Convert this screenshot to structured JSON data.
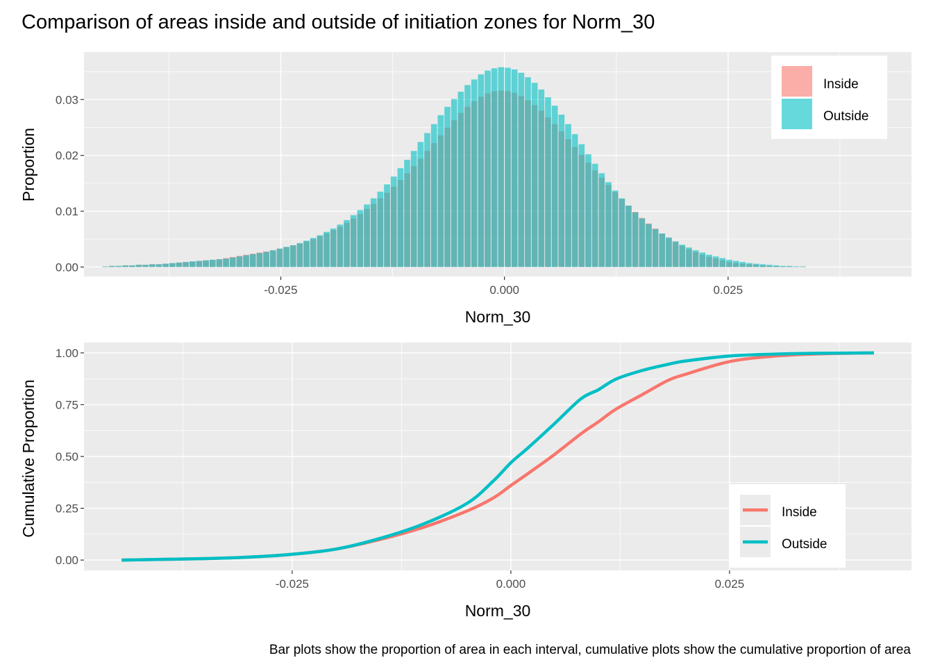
{
  "title": "Comparison of areas inside and outside of initiation zones for Norm_30",
  "caption": "Bar plots show the proportion of area in each interval, cumulative plots show the cumulative proportion of area",
  "colors": {
    "inside": "#F8766D",
    "outside": "#00BFC4",
    "panel": "#EBEBEB",
    "grid": "#FFFFFF"
  },
  "chart_data": [
    {
      "type": "bar",
      "xlabel": "Norm_30",
      "ylabel": "Proportion",
      "xlim": [
        -0.047,
        0.0455
      ],
      "ylim": [
        -0.0017,
        0.0385
      ],
      "xticks": [
        -0.025,
        0.0,
        0.025
      ],
      "xtick_labels": [
        "-0.025",
        "0.000",
        "0.025"
      ],
      "yticks": [
        0.0,
        0.01,
        0.02,
        0.03
      ],
      "ytick_labels": [
        "0.00",
        "0.01",
        "0.02",
        "0.03"
      ],
      "grid": true,
      "legend": {
        "position": "top-right",
        "entries": [
          "Inside",
          "Outside"
        ]
      },
      "bin_width": 0.00075,
      "x_start": -0.045,
      "series": [
        {
          "name": "Inside",
          "color": "#F8766D",
          "opacity": 0.6,
          "values": [
            0.0001,
            0.0002,
            0.0002,
            0.0003,
            0.0003,
            0.0004,
            0.0004,
            0.0005,
            0.0005,
            0.0006,
            0.0007,
            0.0008,
            0.0009,
            0.001,
            0.0011,
            0.0012,
            0.0013,
            0.0014,
            0.0016,
            0.0018,
            0.002,
            0.0022,
            0.0024,
            0.0026,
            0.0028,
            0.003,
            0.0033,
            0.0036,
            0.0039,
            0.0042,
            0.0046,
            0.005,
            0.0055,
            0.006,
            0.0066,
            0.0072,
            0.0079,
            0.0087,
            0.0095,
            0.0104,
            0.0113,
            0.0123,
            0.0133,
            0.0144,
            0.0156,
            0.0168,
            0.0181,
            0.0194,
            0.0208,
            0.0222,
            0.0236,
            0.025,
            0.0263,
            0.0276,
            0.0287,
            0.0297,
            0.0305,
            0.0311,
            0.0315,
            0.0316,
            0.0315,
            0.0312,
            0.0306,
            0.0299,
            0.029,
            0.028,
            0.0268,
            0.0256,
            0.0243,
            0.0229,
            0.0215,
            0.0201,
            0.0187,
            0.0173,
            0.016,
            0.0147,
            0.0134,
            0.0122,
            0.011,
            0.0099,
            0.0088,
            0.0078,
            0.0069,
            0.006,
            0.0052,
            0.0045,
            0.0038,
            0.0032,
            0.0027,
            0.0022,
            0.0018,
            0.0015,
            0.0012,
            0.0009,
            0.0007,
            0.0006,
            0.0005,
            0.0004,
            0.0003,
            0.0002,
            0.0002,
            0.0001,
            0.0001,
            0.0001,
            0.0001
          ]
        },
        {
          "name": "Outside",
          "color": "#00BFC4",
          "opacity": 0.6,
          "values": [
            0.0001,
            0.0002,
            0.0002,
            0.0003,
            0.0003,
            0.0004,
            0.0004,
            0.0005,
            0.0005,
            0.0006,
            0.0007,
            0.0008,
            0.0009,
            0.001,
            0.0011,
            0.0012,
            0.0013,
            0.0014,
            0.0015,
            0.0017,
            0.0019,
            0.0021,
            0.0023,
            0.0025,
            0.0027,
            0.003,
            0.0033,
            0.0036,
            0.0039,
            0.0043,
            0.0047,
            0.0052,
            0.0057,
            0.0063,
            0.0069,
            0.0076,
            0.0084,
            0.0093,
            0.0102,
            0.0112,
            0.0123,
            0.0135,
            0.0148,
            0.0162,
            0.0177,
            0.0192,
            0.0208,
            0.0224,
            0.024,
            0.0256,
            0.0272,
            0.0287,
            0.0301,
            0.0314,
            0.0326,
            0.0336,
            0.0345,
            0.0352,
            0.0356,
            0.0358,
            0.0357,
            0.0354,
            0.0348,
            0.034,
            0.033,
            0.0318,
            0.0304,
            0.0289,
            0.0273,
            0.0256,
            0.0238,
            0.022,
            0.0202,
            0.0185,
            0.0168,
            0.0152,
            0.0137,
            0.0123,
            0.011,
            0.0098,
            0.0087,
            0.0077,
            0.0068,
            0.006,
            0.0053,
            0.0046,
            0.004,
            0.0035,
            0.003,
            0.0026,
            0.0022,
            0.0019,
            0.0016,
            0.0013,
            0.0011,
            0.0009,
            0.0007,
            0.0006,
            0.0005,
            0.0004,
            0.0003,
            0.0002,
            0.0002,
            0.0001,
            0.0001
          ]
        }
      ]
    },
    {
      "type": "line",
      "xlabel": "Norm_30",
      "ylabel": "Cumulative Proportion",
      "xlim": [
        -0.0488,
        0.0458
      ],
      "ylim": [
        -0.05,
        1.05
      ],
      "xticks": [
        -0.025,
        0.0,
        0.025
      ],
      "xtick_labels": [
        "-0.025",
        "0.000",
        "0.025"
      ],
      "yticks": [
        0.0,
        0.25,
        0.5,
        0.75,
        1.0
      ],
      "ytick_labels": [
        "0.00",
        "0.25",
        "0.50",
        "0.75",
        "1.00"
      ],
      "grid": true,
      "legend": {
        "position": "bottom-right",
        "entries": [
          "Inside",
          "Outside"
        ]
      },
      "series": [
        {
          "name": "Inside",
          "color": "#F8766D",
          "x": [
            -0.0445,
            -0.035,
            -0.03,
            -0.025,
            -0.02,
            -0.015,
            -0.01,
            -0.005,
            -0.002,
            0.0,
            0.002,
            0.005,
            0.008,
            0.01,
            0.012,
            0.015,
            0.018,
            0.02,
            0.025,
            0.03,
            0.035,
            0.0415
          ],
          "y": [
            0.0,
            0.007,
            0.014,
            0.028,
            0.053,
            0.099,
            0.158,
            0.237,
            0.3,
            0.36,
            0.419,
            0.51,
            0.609,
            0.667,
            0.728,
            0.798,
            0.868,
            0.897,
            0.958,
            0.984,
            0.995,
            1.0
          ]
        },
        {
          "name": "Outside",
          "color": "#00BFC4",
          "x": [
            -0.0445,
            -0.035,
            -0.03,
            -0.025,
            -0.02,
            -0.015,
            -0.01,
            -0.005,
            -0.002,
            0.0,
            0.002,
            0.005,
            0.008,
            0.01,
            0.012,
            0.015,
            0.018,
            0.02,
            0.025,
            0.03,
            0.035,
            0.0415
          ],
          "y": [
            0.0,
            0.007,
            0.014,
            0.028,
            0.053,
            0.104,
            0.174,
            0.274,
            0.382,
            0.47,
            0.543,
            0.659,
            0.778,
            0.822,
            0.873,
            0.915,
            0.945,
            0.961,
            0.985,
            0.994,
            0.998,
            1.0
          ]
        }
      ]
    }
  ]
}
